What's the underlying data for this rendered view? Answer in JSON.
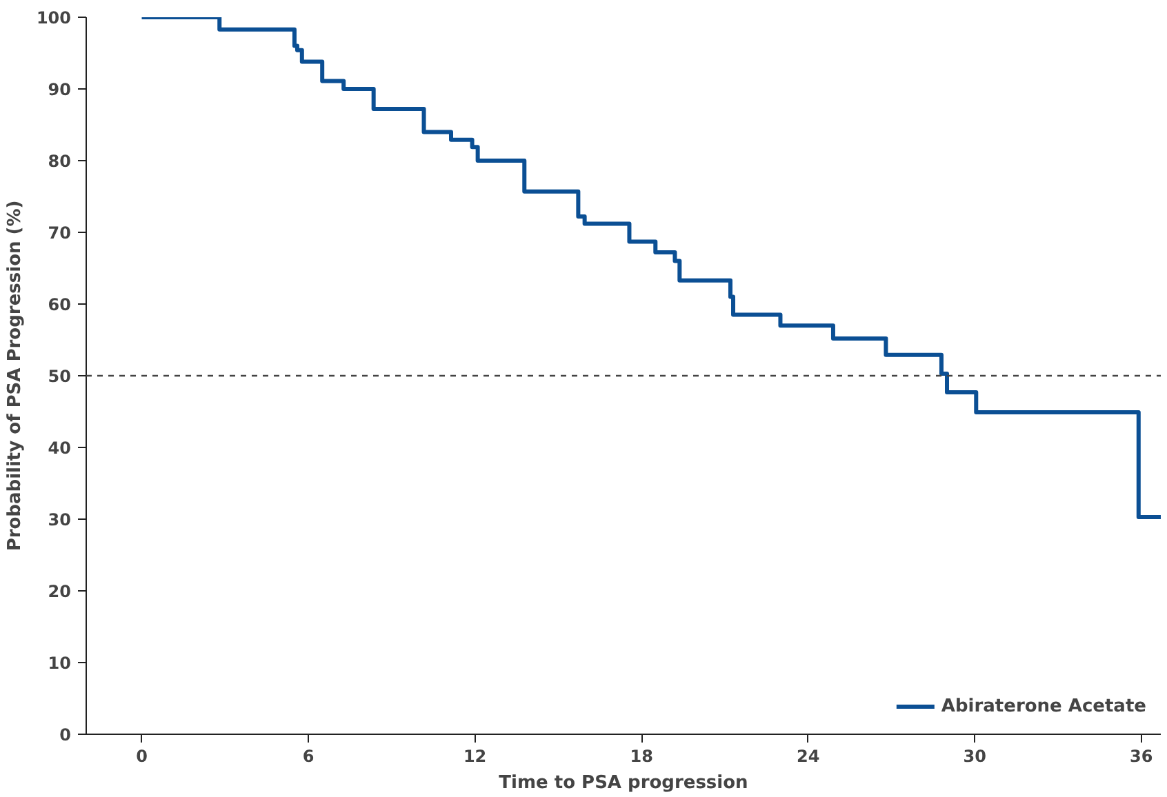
{
  "chart_data": {
    "type": "step",
    "xlabel": "Time to PSA progression",
    "ylabel": "Probability of PSA Progression (%)",
    "series": [
      {
        "name": "Abiraterone Acetate",
        "color": "#0b4f94",
        "x": [
          0,
          2.8,
          5.5,
          5.6,
          5.77,
          6.5,
          7.27,
          8.35,
          10.16,
          11.14,
          11.9,
          12.1,
          13.78,
          15.72,
          15.95,
          17.56,
          18.5,
          19.2,
          19.37,
          21.2,
          21.3,
          23.0,
          24.9,
          26.8,
          28.8,
          29.0,
          30.05,
          35.9,
          36.7
        ],
        "values": [
          100,
          98.3,
          96,
          95.4,
          93.8,
          91.1,
          90,
          87.2,
          84,
          82.9,
          81.9,
          80,
          75.7,
          72.2,
          71.2,
          68.7,
          67.2,
          66,
          63.3,
          61,
          58.5,
          57,
          55.2,
          52.9,
          50.3,
          47.7,
          44.9,
          30.3,
          30.3
        ]
      }
    ],
    "xlim": [
      -2,
      36.7
    ],
    "ylim": [
      0,
      100
    ],
    "xticks": [
      0,
      6,
      12,
      18,
      24,
      30,
      36
    ],
    "yticks": [
      0,
      10,
      20,
      30,
      40,
      50,
      60,
      70,
      80,
      90,
      100
    ],
    "ref_lines": [
      {
        "axis": "y",
        "value": 50,
        "label": null,
        "color": "#444444",
        "line_style": "dashed"
      }
    ],
    "grid": false,
    "legend": "bottom right",
    "line_style": "solid",
    "marker": "none"
  }
}
